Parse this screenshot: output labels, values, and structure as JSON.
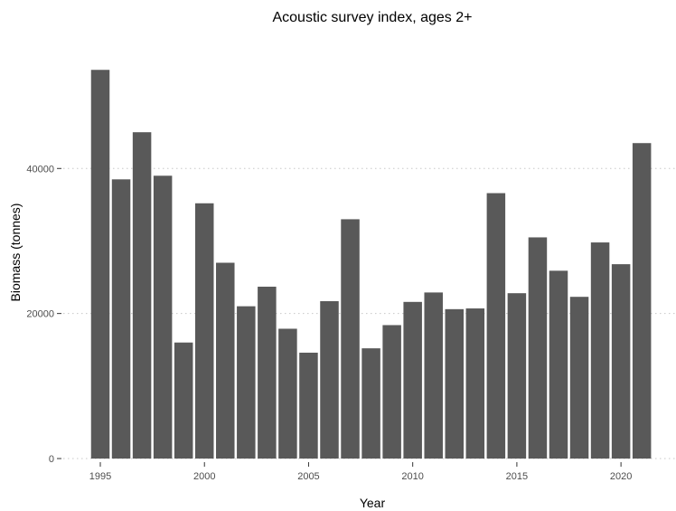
{
  "chart_data": {
    "type": "bar",
    "title": "Acoustic survey index, ages 2+",
    "xlabel": "Year",
    "ylabel": "Biomass (tonnes)",
    "ylim": [
      0,
      56000
    ],
    "y_ticks": [
      0,
      20000,
      40000
    ],
    "y_tick_labels": [
      "0",
      "20000",
      "40000"
    ],
    "x_ticks": [
      1995,
      2000,
      2005,
      2010,
      2015,
      2020
    ],
    "x_tick_labels": [
      "1995",
      "2000",
      "2005",
      "2010",
      "2015",
      "2020"
    ],
    "grid": "horizontal-dotted",
    "bar_color": "#595959",
    "x": [
      1995,
      1996,
      1997,
      1998,
      1999,
      2000,
      2001,
      2002,
      2003,
      2004,
      2005,
      2006,
      2007,
      2008,
      2009,
      2010,
      2011,
      2012,
      2013,
      2014,
      2015,
      2016,
      2017,
      2018,
      2019,
      2020,
      2021
    ],
    "values": [
      53600,
      38500,
      45000,
      39000,
      16000,
      35200,
      27000,
      21000,
      23700,
      17900,
      14600,
      21700,
      33000,
      15200,
      18400,
      21600,
      22900,
      20600,
      20700,
      36600,
      22800,
      30500,
      25900,
      22300,
      29800,
      26800,
      43500
    ]
  }
}
